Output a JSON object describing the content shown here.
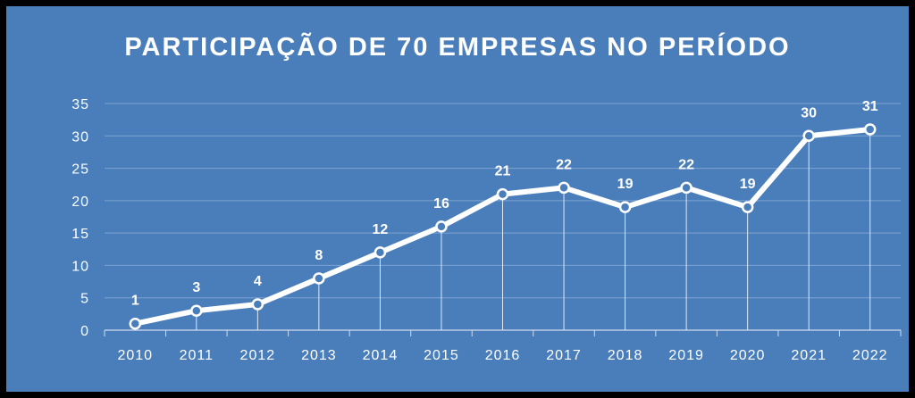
{
  "chart_data": {
    "type": "line",
    "title": "PARTICIPAÇÃO DE 70 EMPRESAS NO PERÍODO",
    "xlabel": "",
    "ylabel": "",
    "categories": [
      "2010",
      "2011",
      "2012",
      "2013",
      "2014",
      "2015",
      "2016",
      "2017",
      "2018",
      "2019",
      "2020",
      "2021",
      "2022"
    ],
    "series": [
      {
        "values": [
          1,
          3,
          4,
          8,
          12,
          16,
          21,
          22,
          19,
          22,
          19,
          30,
          31
        ]
      }
    ],
    "ylim": [
      0,
      35
    ],
    "yticks": [
      0,
      5,
      10,
      15,
      20,
      25,
      30,
      35
    ],
    "grid": true,
    "data_labels": true,
    "colors": {
      "background": "#4a7ebb",
      "line": "#ffffff",
      "grid": "#7ea3d1"
    }
  }
}
